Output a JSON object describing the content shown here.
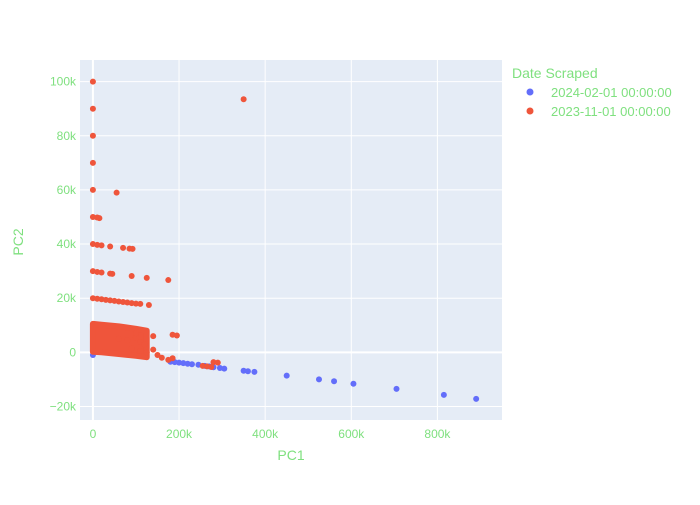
{
  "colors": {
    "plot_bg": "#e5ecf6",
    "grid": "#ffffff",
    "text": "#7fe07f",
    "series_feb": "#636efa",
    "series_nov": "#ef553b"
  },
  "chart_data": {
    "type": "scatter",
    "title": "",
    "xlabel": "PC1",
    "ylabel": "PC2",
    "xlim": [
      -30000,
      950000
    ],
    "ylim": [
      -25000,
      108000
    ],
    "x_ticks": [
      0,
      200000,
      400000,
      600000,
      800000
    ],
    "x_tick_labels": [
      "0",
      "200k",
      "400k",
      "600k",
      "800k"
    ],
    "y_ticks": [
      -20000,
      0,
      20000,
      40000,
      60000,
      80000,
      100000
    ],
    "y_tick_labels": [
      "−20k",
      "0",
      "20k",
      "40k",
      "60k",
      "80k",
      "100k"
    ],
    "grid": true,
    "legend": {
      "title": "Date Scraped",
      "position": "top-right"
    },
    "series": [
      {
        "name": "2024-02-01 00:00:00",
        "color_key": "series_feb",
        "points": [
          [
            0,
            -1000
          ],
          [
            180000,
            -3500
          ],
          [
            190000,
            -3600
          ],
          [
            200000,
            -3800
          ],
          [
            210000,
            -4000
          ],
          [
            220000,
            -4200
          ],
          [
            230000,
            -4400
          ],
          [
            245000,
            -4600
          ],
          [
            260000,
            -5000
          ],
          [
            270000,
            -5200
          ],
          [
            280000,
            -5500
          ],
          [
            295000,
            -5800
          ],
          [
            305000,
            -6000
          ],
          [
            350000,
            -6800
          ],
          [
            360000,
            -7000
          ],
          [
            375000,
            -7200
          ],
          [
            450000,
            -8600
          ],
          [
            525000,
            -10000
          ],
          [
            560000,
            -10700
          ],
          [
            605000,
            -11600
          ],
          [
            705000,
            -13500
          ],
          [
            815000,
            -15700
          ],
          [
            890000,
            -17200
          ]
        ]
      },
      {
        "name": "2023-11-01 00:00:00",
        "color_key": "series_nov",
        "points": [
          [
            0,
            100000
          ],
          [
            0,
            90000
          ],
          [
            0,
            80000
          ],
          [
            0,
            70000
          ],
          [
            0,
            60000
          ],
          [
            0,
            50000
          ],
          [
            0,
            40000
          ],
          [
            0,
            30000
          ],
          [
            0,
            20000
          ],
          [
            55000,
            59000
          ],
          [
            350000,
            93500
          ],
          [
            10000,
            49800
          ],
          [
            15000,
            49600
          ],
          [
            10000,
            39700
          ],
          [
            20000,
            39500
          ],
          [
            40000,
            39100
          ],
          [
            70000,
            38600
          ],
          [
            85000,
            38300
          ],
          [
            92000,
            38200
          ],
          [
            10000,
            29700
          ],
          [
            20000,
            29500
          ],
          [
            40000,
            29100
          ],
          [
            45000,
            29000
          ],
          [
            90000,
            28200
          ],
          [
            125000,
            27500
          ],
          [
            175000,
            26700
          ],
          [
            10000,
            19800
          ],
          [
            20000,
            19600
          ],
          [
            30000,
            19400
          ],
          [
            40000,
            19200
          ],
          [
            50000,
            19000
          ],
          [
            60000,
            18800
          ],
          [
            70000,
            18600
          ],
          [
            80000,
            18400
          ],
          [
            90000,
            18200
          ],
          [
            100000,
            18000
          ],
          [
            110000,
            17900
          ],
          [
            130000,
            17500
          ],
          [
            60000,
            5000
          ],
          [
            80000,
            4500
          ],
          [
            100000,
            5500
          ],
          [
            110000,
            3800
          ],
          [
            120000,
            3000
          ],
          [
            90000,
            1500
          ],
          [
            110000,
            500
          ],
          [
            125000,
            0
          ],
          [
            140000,
            1000
          ],
          [
            150000,
            -1000
          ],
          [
            160000,
            -2000
          ],
          [
            175000,
            -2800
          ],
          [
            185000,
            -2200
          ],
          [
            185000,
            6500
          ],
          [
            195000,
            6200
          ],
          [
            280000,
            -3600
          ],
          [
            290000,
            -3800
          ],
          [
            255000,
            -5000
          ],
          [
            265000,
            -5200
          ],
          [
            275000,
            -5400
          ],
          [
            140000,
            6000
          ],
          [
            100000,
            7000
          ]
        ],
        "dense_region": {
          "top": [
            [
              0,
              10500
            ],
            [
              20000,
              10200
            ],
            [
              60000,
              9600
            ],
            [
              100000,
              8700
            ],
            [
              125000,
              8000
            ]
          ],
          "bottom": [
            [
              125000,
              -1800
            ],
            [
              100000,
              -1300
            ],
            [
              60000,
              -600
            ],
            [
              20000,
              0
            ],
            [
              0,
              200
            ]
          ]
        }
      }
    ]
  }
}
